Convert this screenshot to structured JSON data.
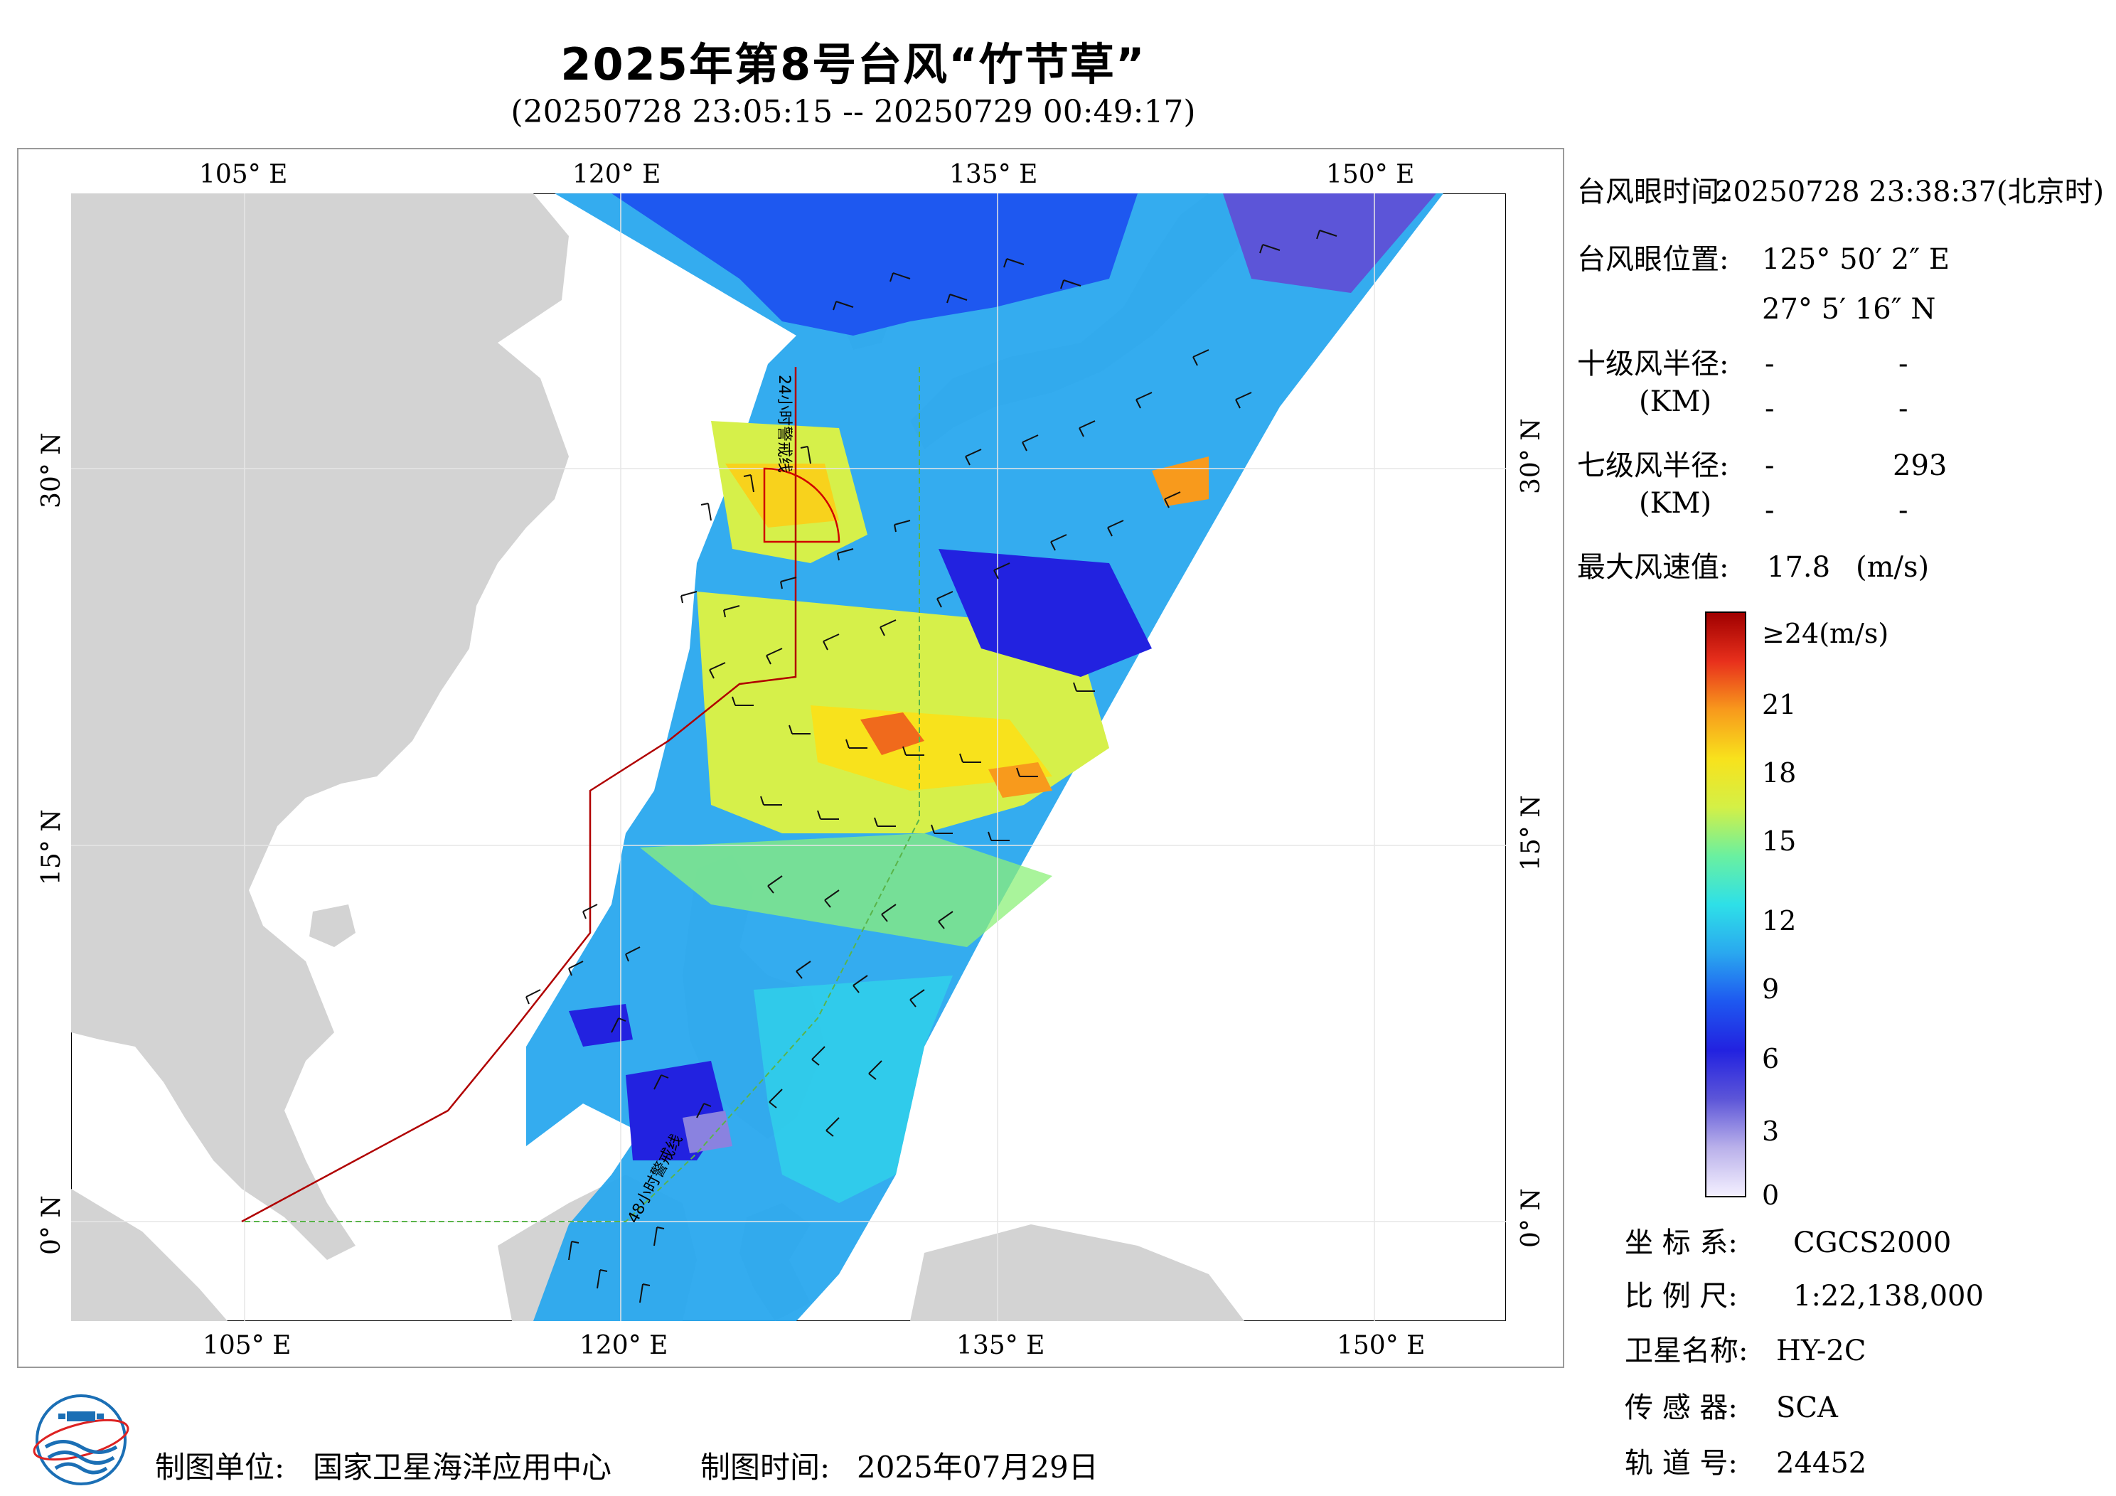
{
  "title": "2025年第8号台风“竹节草”",
  "subtitle": "(20250728 23:05:15 -- 20250729 00:49:17)",
  "axes": {
    "lon_labels": [
      "105° E",
      "120° E",
      "135° E",
      "150° E"
    ],
    "lat_labels": [
      "30° N",
      "15° N",
      "0° N"
    ]
  },
  "map_annotations": {
    "line_24h": "24小时警戒线",
    "line_48h": "48小时警戒线"
  },
  "info_panel": {
    "eye_time_label": "台风眼时间:",
    "eye_time_value": "20250728 23:38:37(北京时)",
    "eye_pos_label": "台风眼位置:",
    "eye_lon": "125° 50′ 2″ E",
    "eye_lat": "27° 5′ 16″ N",
    "r10_label": "十级风半径:",
    "r7_label": "七级风半径:",
    "km_unit": "(KM)",
    "dash": "-",
    "r7_value": "293",
    "max_wind_label": "最大风速值:",
    "max_wind_value": "17.8",
    "max_wind_unit": "(m/s)"
  },
  "colorbar": {
    "top_label": "≥24(m/s)",
    "ticks": [
      "21",
      "18",
      "15",
      "12",
      "9",
      "6",
      "3",
      "0"
    ],
    "colors": [
      "#f4f0ff",
      "#b9b0ea",
      "#5c55d8",
      "#2222e0",
      "#1e58f0",
      "#2aa8ef",
      "#2ee0e8",
      "#6af0a0",
      "#d4f046",
      "#f8e21c",
      "#f89a1c",
      "#e8301c",
      "#a00000"
    ]
  },
  "metadata": {
    "coord_label": "坐 标 系:",
    "coord_value": "CGCS2000",
    "scale_label": "比 例 尺:",
    "scale_value": "1:22,138,000",
    "satellite_label": "卫星名称:",
    "satellite_value": "HY-2C",
    "sensor_label": "传 感 器:",
    "sensor_value": "SCA",
    "orbit_label": "轨 道 号:",
    "orbit_value": "24452"
  },
  "footer": {
    "producer_label": "制图单位:",
    "producer_value": "国家卫星海洋应用中心",
    "date_label": "制图时间:",
    "date_value": "2025年07月29日"
  }
}
